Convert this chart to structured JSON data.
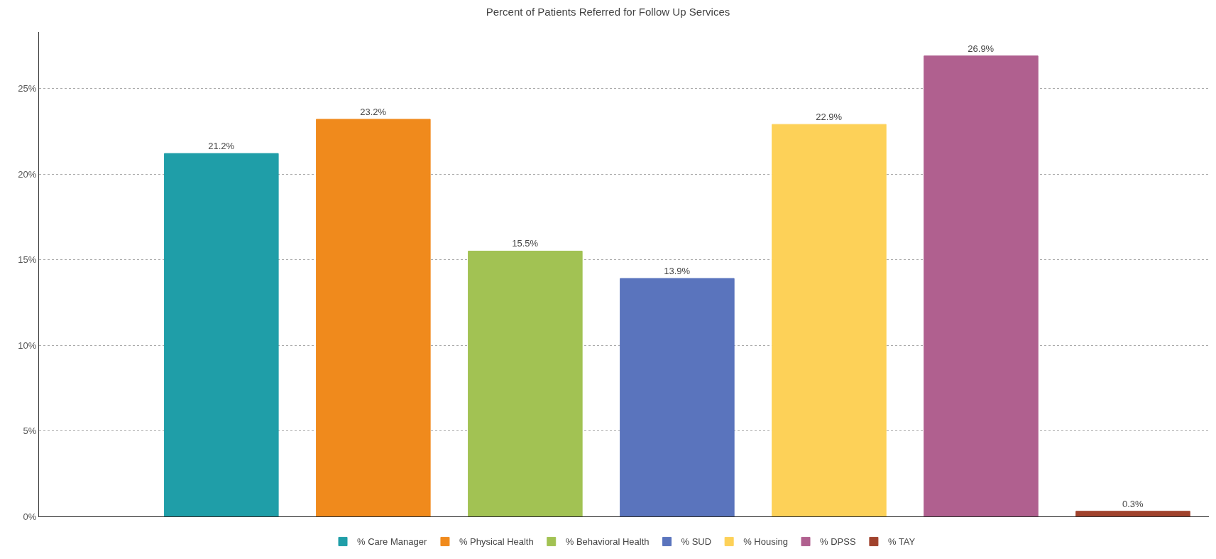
{
  "chart_data": {
    "type": "bar",
    "title": "Percent of Patients Referred for Follow Up Services",
    "categories": [
      null
    ],
    "series": [
      {
        "name": "% Care Manager",
        "color": "#1f9ea8",
        "values": [
          21.2
        ],
        "value_labels": [
          "21.2%"
        ]
      },
      {
        "name": "% Physical Health",
        "color": "#f08a1c",
        "values": [
          23.2
        ],
        "value_labels": [
          "23.2%"
        ]
      },
      {
        "name": "% Behavioral Health",
        "color": "#a2c253",
        "values": [
          15.5
        ],
        "value_labels": [
          "15.5%"
        ]
      },
      {
        "name": "% SUD",
        "color": "#5a74bd",
        "values": [
          13.9
        ],
        "value_labels": [
          "13.9%"
        ]
      },
      {
        "name": "% Housing",
        "color": "#fdd158",
        "values": [
          22.9
        ],
        "value_labels": [
          "22.9%"
        ]
      },
      {
        "name": "% DPSS",
        "color": "#b0608f",
        "values": [
          26.9
        ],
        "value_labels": [
          "26.9%"
        ]
      },
      {
        "name": "% TAY",
        "color": "#a0422c",
        "values": [
          0.3
        ],
        "value_labels": [
          "0.3%"
        ]
      }
    ],
    "ylim": [
      0,
      28.3
    ],
    "yticks": [
      {
        "value": 0,
        "label": "0%"
      },
      {
        "value": 5,
        "label": "5%"
      },
      {
        "value": 10,
        "label": "10%"
      },
      {
        "value": 15,
        "label": "15%"
      },
      {
        "value": 20,
        "label": "20%"
      },
      {
        "value": 25,
        "label": "25%"
      }
    ],
    "grid": "y",
    "legend": "bottom"
  }
}
